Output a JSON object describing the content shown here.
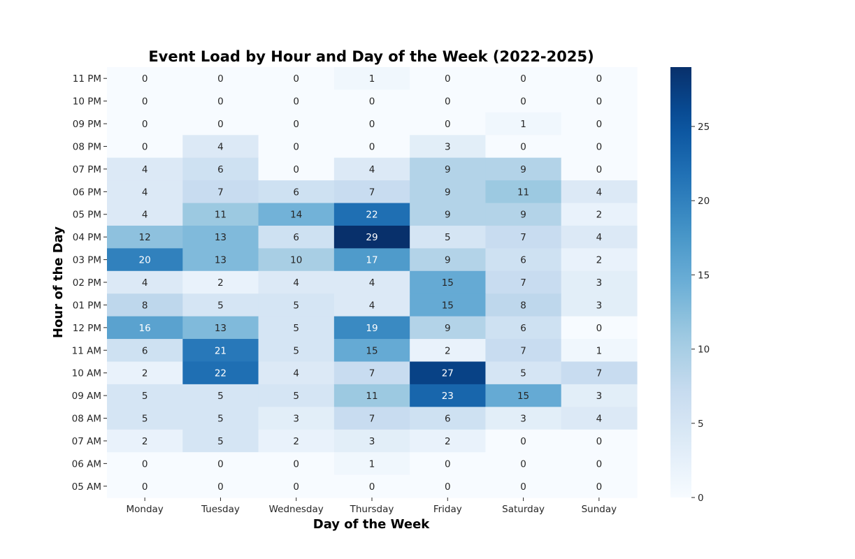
{
  "chart_data": {
    "type": "heatmap",
    "title": "Event Load by Hour and Day of the Week (2022-2025)",
    "xlabel": "Day of the Week",
    "ylabel": "Hour of the Day",
    "x_categories": [
      "Monday",
      "Tuesday",
      "Wednesday",
      "Thursday",
      "Friday",
      "Saturday",
      "Sunday"
    ],
    "y_categories": [
      "11 PM",
      "10 PM",
      "09 PM",
      "08 PM",
      "07 PM",
      "06 PM",
      "05 PM",
      "04 PM",
      "03 PM",
      "02 PM",
      "01 PM",
      "12 PM",
      "11 AM",
      "10 AM",
      "09 AM",
      "08 AM",
      "07 AM",
      "06 AM",
      "05 AM"
    ],
    "values": [
      [
        0,
        0,
        0,
        1,
        0,
        0,
        0
      ],
      [
        0,
        0,
        0,
        0,
        0,
        0,
        0
      ],
      [
        0,
        0,
        0,
        0,
        0,
        1,
        0
      ],
      [
        0,
        4,
        0,
        0,
        3,
        0,
        0
      ],
      [
        4,
        6,
        0,
        4,
        9,
        9,
        0
      ],
      [
        4,
        7,
        6,
        7,
        9,
        11,
        4
      ],
      [
        4,
        11,
        14,
        22,
        9,
        9,
        2
      ],
      [
        12,
        13,
        6,
        29,
        5,
        7,
        4
      ],
      [
        20,
        13,
        10,
        17,
        9,
        6,
        2
      ],
      [
        4,
        2,
        4,
        4,
        15,
        7,
        3
      ],
      [
        8,
        5,
        5,
        4,
        15,
        8,
        3
      ],
      [
        16,
        13,
        5,
        19,
        9,
        6,
        0
      ],
      [
        6,
        21,
        5,
        15,
        2,
        7,
        1
      ],
      [
        2,
        22,
        4,
        7,
        27,
        5,
        7
      ],
      [
        5,
        5,
        5,
        11,
        23,
        15,
        3
      ],
      [
        5,
        5,
        3,
        7,
        6,
        3,
        4
      ],
      [
        2,
        5,
        2,
        3,
        2,
        0,
        0
      ],
      [
        0,
        0,
        0,
        1,
        0,
        0,
        0
      ],
      [
        0,
        0,
        0,
        0,
        0,
        0,
        0
      ]
    ],
    "colorbar": {
      "min": 0,
      "max": 29,
      "ticks": [
        0,
        5,
        10,
        15,
        20,
        25
      ],
      "colormap": "Blues"
    }
  }
}
